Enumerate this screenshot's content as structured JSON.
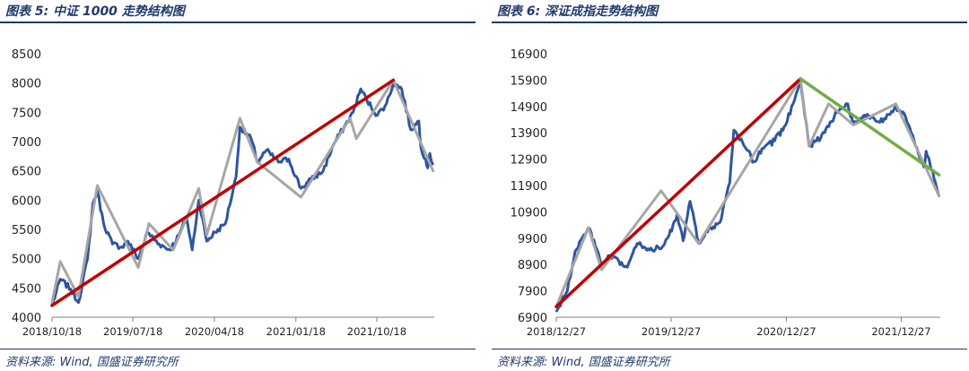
{
  "colors": {
    "header": "#1f3a6e",
    "series": "#2e56a0",
    "trend_up": "#c00000",
    "trend_down": "#70ad47",
    "swing": "#a6a6a6",
    "axis": "#7f7f7f"
  },
  "chart_data": [
    {
      "type": "line",
      "title": "图表 5:  中证 1000 走势结构图",
      "source": "资料来源:  Wind, 国盛证券研究所",
      "xlabel": "",
      "ylabel": "",
      "x_start": "2018-10-18",
      "x_end": "2022-04-30",
      "ylim": [
        4000,
        8500
      ],
      "yticks": [
        4000,
        4500,
        5000,
        5500,
        6000,
        6500,
        7000,
        7500,
        8000,
        8500
      ],
      "xticks": [
        {
          "label": "2018/10/18",
          "date": "2018-10-18"
        },
        {
          "label": "2019/07/18",
          "date": "2019-07-18"
        },
        {
          "label": "2020/04/18",
          "date": "2020-04-18"
        },
        {
          "label": "2021/01/18",
          "date": "2021-01-18"
        },
        {
          "label": "2021/10/18",
          "date": "2021-10-18"
        }
      ],
      "grid": false,
      "legend": "none",
      "series": [
        {
          "values": [
            [
              "2018-10-18",
              4200
            ],
            [
              "2018-11-15",
              4650
            ],
            [
              "2018-12-20",
              4480
            ],
            [
              "2019-01-15",
              4250
            ],
            [
              "2019-02-15",
              5000
            ],
            [
              "2019-03-05",
              5950
            ],
            [
              "2019-03-20",
              6150
            ],
            [
              "2019-04-10",
              5600
            ],
            [
              "2019-05-10",
              5250
            ],
            [
              "2019-06-10",
              5200
            ],
            [
              "2019-07-01",
              5300
            ],
            [
              "2019-08-05",
              5000
            ],
            [
              "2019-09-05",
              5450
            ],
            [
              "2019-10-15",
              5250
            ],
            [
              "2019-11-20",
              5150
            ],
            [
              "2019-12-20",
              5400
            ],
            [
              "2020-01-15",
              5700
            ],
            [
              "2020-02-03",
              5150
            ],
            [
              "2020-02-25",
              6000
            ],
            [
              "2020-03-23",
              5300
            ],
            [
              "2020-04-20",
              5450
            ],
            [
              "2020-05-25",
              5600
            ],
            [
              "2020-06-30",
              6400
            ],
            [
              "2020-07-13",
              7250
            ],
            [
              "2020-08-20",
              7050
            ],
            [
              "2020-09-10",
              6650
            ],
            [
              "2020-10-10",
              6850
            ],
            [
              "2020-11-20",
              6650
            ],
            [
              "2020-12-25",
              6700
            ],
            [
              "2021-02-04",
              6200
            ],
            [
              "2021-03-10",
              6350
            ],
            [
              "2021-04-20",
              6500
            ],
            [
              "2021-05-25",
              6950
            ],
            [
              "2021-06-30",
              7250
            ],
            [
              "2021-07-30",
              7500
            ],
            [
              "2021-08-25",
              7900
            ],
            [
              "2021-09-15",
              7700
            ],
            [
              "2021-10-20",
              7450
            ],
            [
              "2021-11-20",
              7650
            ],
            [
              "2021-12-13",
              8000
            ],
            [
              "2022-01-10",
              7900
            ],
            [
              "2022-02-10",
              7200
            ],
            [
              "2022-03-09",
              7350
            ],
            [
              "2022-03-16",
              6900
            ],
            [
              "2022-04-01",
              6700
            ],
            [
              "2022-04-08",
              6550
            ],
            [
              "2022-04-15",
              6800
            ],
            [
              "2022-04-26",
              6600
            ]
          ]
        }
      ],
      "overlays": [
        {
          "role": "trend_up",
          "points": [
            [
              "2018-10-18",
              4200
            ],
            [
              "2021-12-13",
              8050
            ]
          ]
        },
        {
          "role": "swing",
          "points": [
            [
              "2018-10-18",
              4250
            ],
            [
              "2018-11-15",
              4950
            ],
            [
              "2019-01-15",
              4350
            ],
            [
              "2019-03-20",
              6250
            ],
            [
              "2019-08-05",
              4850
            ],
            [
              "2019-09-10",
              5600
            ],
            [
              "2019-12-01",
              5150
            ],
            [
              "2020-02-25",
              6200
            ],
            [
              "2020-03-23",
              5400
            ],
            [
              "2020-07-13",
              7400
            ],
            [
              "2020-09-10",
              6650
            ],
            [
              "2021-02-04",
              6050
            ],
            [
              "2021-07-20",
              7400
            ],
            [
              "2021-08-10",
              7050
            ],
            [
              "2021-12-13",
              8050
            ],
            [
              "2022-04-26",
              6500
            ]
          ]
        }
      ]
    },
    {
      "type": "line",
      "title": "图表 6:  深证成指走势结构图",
      "source": "资料来源:  Wind, 国盛证券研究所",
      "xlabel": "",
      "ylabel": "",
      "x_start": "2018-12-27",
      "x_end": "2022-04-30",
      "ylim": [
        6900,
        16900
      ],
      "yticks": [
        6900,
        7900,
        8900,
        9900,
        10900,
        11900,
        12900,
        13900,
        14900,
        15900,
        16900
      ],
      "xticks": [
        {
          "label": "2018/12/27",
          "date": "2018-12-27"
        },
        {
          "label": "2019/12/27",
          "date": "2019-12-27"
        },
        {
          "label": "2020/12/27",
          "date": "2020-12-27"
        },
        {
          "label": "2021/12/27",
          "date": "2021-12-27"
        }
      ],
      "grid": false,
      "legend": "none",
      "series": [
        {
          "values": [
            [
              "2018-12-27",
              7100
            ],
            [
              "2019-01-31",
              7900
            ],
            [
              "2019-02-25",
              9400
            ],
            [
              "2019-04-08",
              10300
            ],
            [
              "2019-04-30",
              9600
            ],
            [
              "2019-05-20",
              8900
            ],
            [
              "2019-06-15",
              9200
            ],
            [
              "2019-08-10",
              8800
            ],
            [
              "2019-09-10",
              9700
            ],
            [
              "2019-10-15",
              9500
            ],
            [
              "2019-11-25",
              9500
            ],
            [
              "2019-12-20",
              10000
            ],
            [
              "2020-01-15",
              10800
            ],
            [
              "2020-02-03",
              9800
            ],
            [
              "2020-02-25",
              11300
            ],
            [
              "2020-03-23",
              9700
            ],
            [
              "2020-04-30",
              10300
            ],
            [
              "2020-05-30",
              10500
            ],
            [
              "2020-06-30",
              12000
            ],
            [
              "2020-07-13",
              14000
            ],
            [
              "2020-08-15",
              13400
            ],
            [
              "2020-09-15",
              12800
            ],
            [
              "2020-10-15",
              13300
            ],
            [
              "2020-11-20",
              13600
            ],
            [
              "2020-12-25",
              14200
            ],
            [
              "2021-02-10",
              15900
            ],
            [
              "2021-03-09",
              13400
            ],
            [
              "2021-04-15",
              13700
            ],
            [
              "2021-05-15",
              14300
            ],
            [
              "2021-06-15",
              14800
            ],
            [
              "2021-07-10",
              15000
            ],
            [
              "2021-07-28",
              14200
            ],
            [
              "2021-09-10",
              14600
            ],
            [
              "2021-10-20",
              14300
            ],
            [
              "2021-12-10",
              14900
            ],
            [
              "2022-01-10",
              14500
            ],
            [
              "2022-02-10",
              13400
            ],
            [
              "2022-03-09",
              12600
            ],
            [
              "2022-03-16",
              13200
            ],
            [
              "2022-04-01",
              12500
            ],
            [
              "2022-04-15",
              12000
            ],
            [
              "2022-04-26",
              11500
            ]
          ]
        }
      ],
      "overlays": [
        {
          "role": "trend_up",
          "points": [
            [
              "2018-12-27",
              7300
            ],
            [
              "2021-02-10",
              15950
            ]
          ]
        },
        {
          "role": "trend_down",
          "points": [
            [
              "2021-02-10",
              15950
            ],
            [
              "2022-04-26",
              12300
            ]
          ]
        },
        {
          "role": "swing",
          "points": [
            [
              "2018-12-27",
              7300
            ],
            [
              "2019-04-08",
              10300
            ],
            [
              "2019-05-20",
              8700
            ],
            [
              "2019-11-25",
              11700
            ],
            [
              "2020-03-23",
              9700
            ],
            [
              "2021-02-10",
              15950
            ],
            [
              "2021-03-09",
              13400
            ],
            [
              "2021-05-10",
              15000
            ],
            [
              "2021-07-28",
              14200
            ],
            [
              "2021-12-10",
              15000
            ],
            [
              "2022-04-26",
              11500
            ]
          ]
        }
      ]
    }
  ]
}
